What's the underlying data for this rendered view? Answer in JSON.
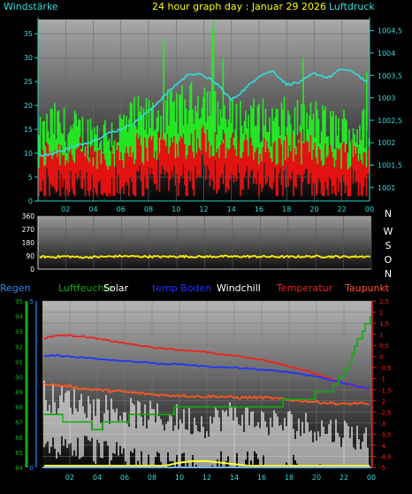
{
  "chart_data": [
    {
      "type": "line",
      "title": "24 hour graph day : Januar 29 2026",
      "left_axis_label": "Windstärke",
      "right_axis_label": "Luftdruck",
      "x_ticks": [
        "02",
        "04",
        "06",
        "08",
        "10",
        "12",
        "14",
        "16",
        "18",
        "20",
        "22",
        "00"
      ],
      "left_ylim": [
        0,
        38
      ],
      "left_ticks": [
        0,
        5,
        10,
        15,
        20,
        25,
        30,
        35
      ],
      "right_ylim": [
        1000.7,
        1004.75
      ],
      "right_ticks": [
        "1001",
        "1001,5",
        "1002",
        "1002,5",
        "1003",
        "1003,5",
        "1004",
        "1004,5"
      ],
      "grid": true,
      "colors": {
        "gust": "#22ee22",
        "wind": "#ee1111",
        "pressure": "#33dddd",
        "title": "#ffff00",
        "axis_label": "#33dddd"
      },
      "series": [
        {
          "color": "#22ee22",
          "x": [
            0,
            1,
            2,
            3,
            4,
            5,
            6,
            7,
            8,
            9,
            10,
            11,
            12,
            13,
            14,
            15,
            16,
            17,
            18,
            19,
            20,
            21,
            22,
            23,
            24
          ],
          "values": [
            12,
            16,
            15,
            14,
            14,
            14,
            15,
            17,
            17,
            18,
            19,
            20,
            22,
            18,
            17,
            17,
            17,
            16,
            17,
            16,
            17,
            15,
            15,
            15,
            15
          ]
        },
        {
          "color": "#ee1111",
          "x": [
            0,
            1,
            2,
            3,
            4,
            5,
            6,
            7,
            8,
            9,
            10,
            11,
            12,
            13,
            14,
            15,
            16,
            17,
            18,
            19,
            20,
            21,
            22,
            23,
            24
          ],
          "values": [
            8,
            11,
            10,
            10,
            9,
            10,
            10,
            11,
            11,
            12,
            12,
            12,
            13,
            12,
            11,
            11,
            11,
            10,
            11,
            11,
            11,
            10,
            10,
            10,
            10
          ]
        },
        {
          "color": "#33dddd",
          "x": [
            0,
            1,
            2,
            3,
            4,
            5,
            6,
            7,
            8,
            9,
            10,
            11,
            12,
            13,
            14,
            15,
            16,
            17,
            18,
            19,
            20,
            21,
            22,
            23,
            24
          ],
          "values": [
            1001.7,
            1001.75,
            1001.85,
            1001.95,
            1002.05,
            1002.2,
            1002.3,
            1002.45,
            1002.7,
            1003.0,
            1003.3,
            1003.55,
            1003.5,
            1003.3,
            1002.95,
            1003.2,
            1003.5,
            1003.6,
            1003.3,
            1003.35,
            1003.55,
            1003.45,
            1003.65,
            1003.55,
            1003.3
          ]
        }
      ]
    },
    {
      "type": "line",
      "title": "",
      "x_ticks": [
        "02",
        "04",
        "06",
        "08",
        "10",
        "12",
        "14",
        "16",
        "18",
        "20",
        "22",
        "00"
      ],
      "ylim": [
        0,
        360
      ],
      "y_ticks": [
        "0",
        "90",
        "180",
        "270",
        "360"
      ],
      "compass_labels": [
        "N",
        "W",
        "S",
        "O",
        "N"
      ],
      "grid": true,
      "colors": {
        "direction": "#ffee00",
        "compass": "#ffffff",
        "ticks": "#ffffff"
      },
      "series": [
        {
          "color": "#ffee00",
          "x": [
            0,
            1,
            2,
            3,
            4,
            5,
            6,
            7,
            8,
            9,
            10,
            11,
            12,
            13,
            14,
            15,
            16,
            17,
            18,
            19,
            20,
            21,
            22,
            23,
            24
          ],
          "values": [
            85,
            82,
            87,
            80,
            82,
            85,
            88,
            86,
            85,
            84,
            86,
            85,
            84,
            86,
            85,
            86,
            85,
            84,
            83,
            85,
            86,
            85,
            84,
            85,
            86
          ]
        }
      ]
    },
    {
      "type": "line",
      "title": "",
      "legend": [
        "Regen",
        "Luftfeuchte",
        "Solar",
        "temp Boden",
        "Windchill",
        "Temperatur",
        "Taupunkt"
      ],
      "legend_colors": [
        "#1e90ff",
        "#11aa11",
        "#ffffff",
        "#2233ff",
        "#ffffff",
        "#ee2222",
        "#ff5522"
      ],
      "x_ticks": [
        "02",
        "04",
        "06",
        "08",
        "10",
        "12",
        "14",
        "16",
        "18",
        "20",
        "22",
        "00"
      ],
      "left_axis_ticks": [
        "84",
        "85",
        "86",
        "87",
        "88",
        "89",
        "90",
        "91",
        "92",
        "93",
        "94",
        "95"
      ],
      "left_ylim": [
        84,
        95
      ],
      "rain_axis_ticks": [
        "0",
        "5"
      ],
      "rain_ylim": [
        0,
        5
      ],
      "right_ylim": [
        -5,
        2.5
      ],
      "right_ticks": [
        "-5",
        "-4,5",
        "-4",
        "-3,5",
        "-3",
        "-2,5",
        "-2",
        "-1,5",
        "-1",
        "-0,5",
        "0",
        "0,5",
        "1",
        "1,5",
        "2",
        "2,5"
      ],
      "grid": true,
      "series": [
        {
          "name": "Temperatur",
          "color": "#ee2222",
          "x": [
            0,
            1,
            2,
            3,
            4,
            5,
            6,
            7,
            8,
            9,
            10,
            11,
            12,
            13,
            14,
            15,
            16,
            17,
            18,
            19,
            20,
            21,
            22,
            23,
            24
          ],
          "values": [
            0.8,
            0.95,
            0.95,
            0.9,
            0.8,
            0.7,
            0.6,
            0.5,
            0.4,
            0.35,
            0.3,
            0.25,
            0.2,
            0.1,
            0.05,
            -0.05,
            -0.15,
            -0.3,
            -0.45,
            -0.6,
            -0.8,
            -1.0,
            -1.2,
            -1.35,
            -1.5
          ]
        },
        {
          "name": "temp Boden",
          "color": "#2233ff",
          "x": [
            0,
            1,
            2,
            3,
            4,
            5,
            6,
            7,
            8,
            9,
            10,
            11,
            12,
            13,
            14,
            15,
            16,
            17,
            18,
            19,
            20,
            21,
            22,
            23,
            24
          ],
          "values": [
            0.0,
            0.05,
            0.0,
            -0.05,
            -0.1,
            -0.15,
            -0.2,
            -0.25,
            -0.3,
            -0.35,
            -0.35,
            -0.4,
            -0.45,
            -0.5,
            -0.5,
            -0.55,
            -0.6,
            -0.65,
            -0.7,
            -0.8,
            -0.9,
            -1.05,
            -1.2,
            -1.35,
            -1.45
          ]
        },
        {
          "name": "Taupunkt",
          "color": "#ff5522",
          "x": [
            0,
            1,
            2,
            3,
            4,
            5,
            6,
            7,
            8,
            9,
            10,
            11,
            12,
            13,
            14,
            15,
            16,
            17,
            18,
            19,
            20,
            21,
            22,
            23,
            24
          ],
          "values": [
            -1.2,
            -1.3,
            -1.35,
            -1.45,
            -1.5,
            -1.55,
            -1.6,
            -1.65,
            -1.7,
            -1.75,
            -1.75,
            -1.8,
            -1.8,
            -1.8,
            -1.85,
            -1.85,
            -1.85,
            -1.9,
            -1.95,
            -2.0,
            -2.05,
            -2.1,
            -2.15,
            -2.1,
            -2.2
          ]
        },
        {
          "name": "Windchill",
          "color": "#ffffff",
          "x": [
            0,
            1,
            2,
            3,
            4,
            5,
            6,
            7,
            8,
            9,
            10,
            11,
            12,
            13,
            14,
            15,
            16,
            17,
            18,
            19,
            20,
            21,
            22,
            23,
            24
          ],
          "values": [
            -2.6,
            -3.0,
            -2.9,
            -3.1,
            -3.3,
            -3.4,
            -3.5,
            -3.6,
            -3.7,
            -3.8,
            -3.8,
            -3.9,
            -4.0,
            -3.7,
            -3.6,
            -3.8,
            -3.9,
            -4.0,
            -4.0,
            -4.1,
            -4.2,
            -4.3,
            -4.4,
            -4.6,
            -4.8
          ]
        },
        {
          "name": "Luftfeuchte",
          "color": "#11aa11",
          "x": [
            0,
            1,
            2,
            3,
            4,
            5,
            6,
            7,
            8,
            9,
            10,
            11,
            12,
            13,
            14,
            15,
            16,
            17,
            18,
            19,
            20,
            21,
            22,
            23,
            24
          ],
          "values": [
            87.5,
            87.5,
            86.8,
            86.8,
            86.7,
            86.9,
            87.2,
            87.4,
            87.6,
            87.7,
            87.8,
            87.9,
            88.0,
            88.0,
            88.0,
            88.1,
            88.1,
            88.2,
            88.3,
            88.5,
            88.8,
            89.0,
            90.3,
            92.5,
            94.0
          ]
        },
        {
          "name": "Solar",
          "color": "#ffff33",
          "x": [
            0,
            1,
            2,
            3,
            4,
            5,
            6,
            7,
            8,
            9,
            10,
            11,
            12,
            13,
            14,
            15,
            16,
            17,
            18,
            19,
            20,
            21,
            22,
            23,
            24
          ],
          "values": [
            84,
            84,
            84,
            84,
            84,
            84,
            84,
            84,
            84,
            84,
            84.2,
            84.3,
            84.3,
            84.2,
            84.1,
            84,
            84,
            84,
            84,
            84,
            84,
            84,
            84,
            84,
            84
          ]
        },
        {
          "name": "Regen",
          "color": "#1e90ff",
          "x": [
            0,
            24
          ],
          "values": [
            0,
            0
          ]
        }
      ]
    }
  ]
}
